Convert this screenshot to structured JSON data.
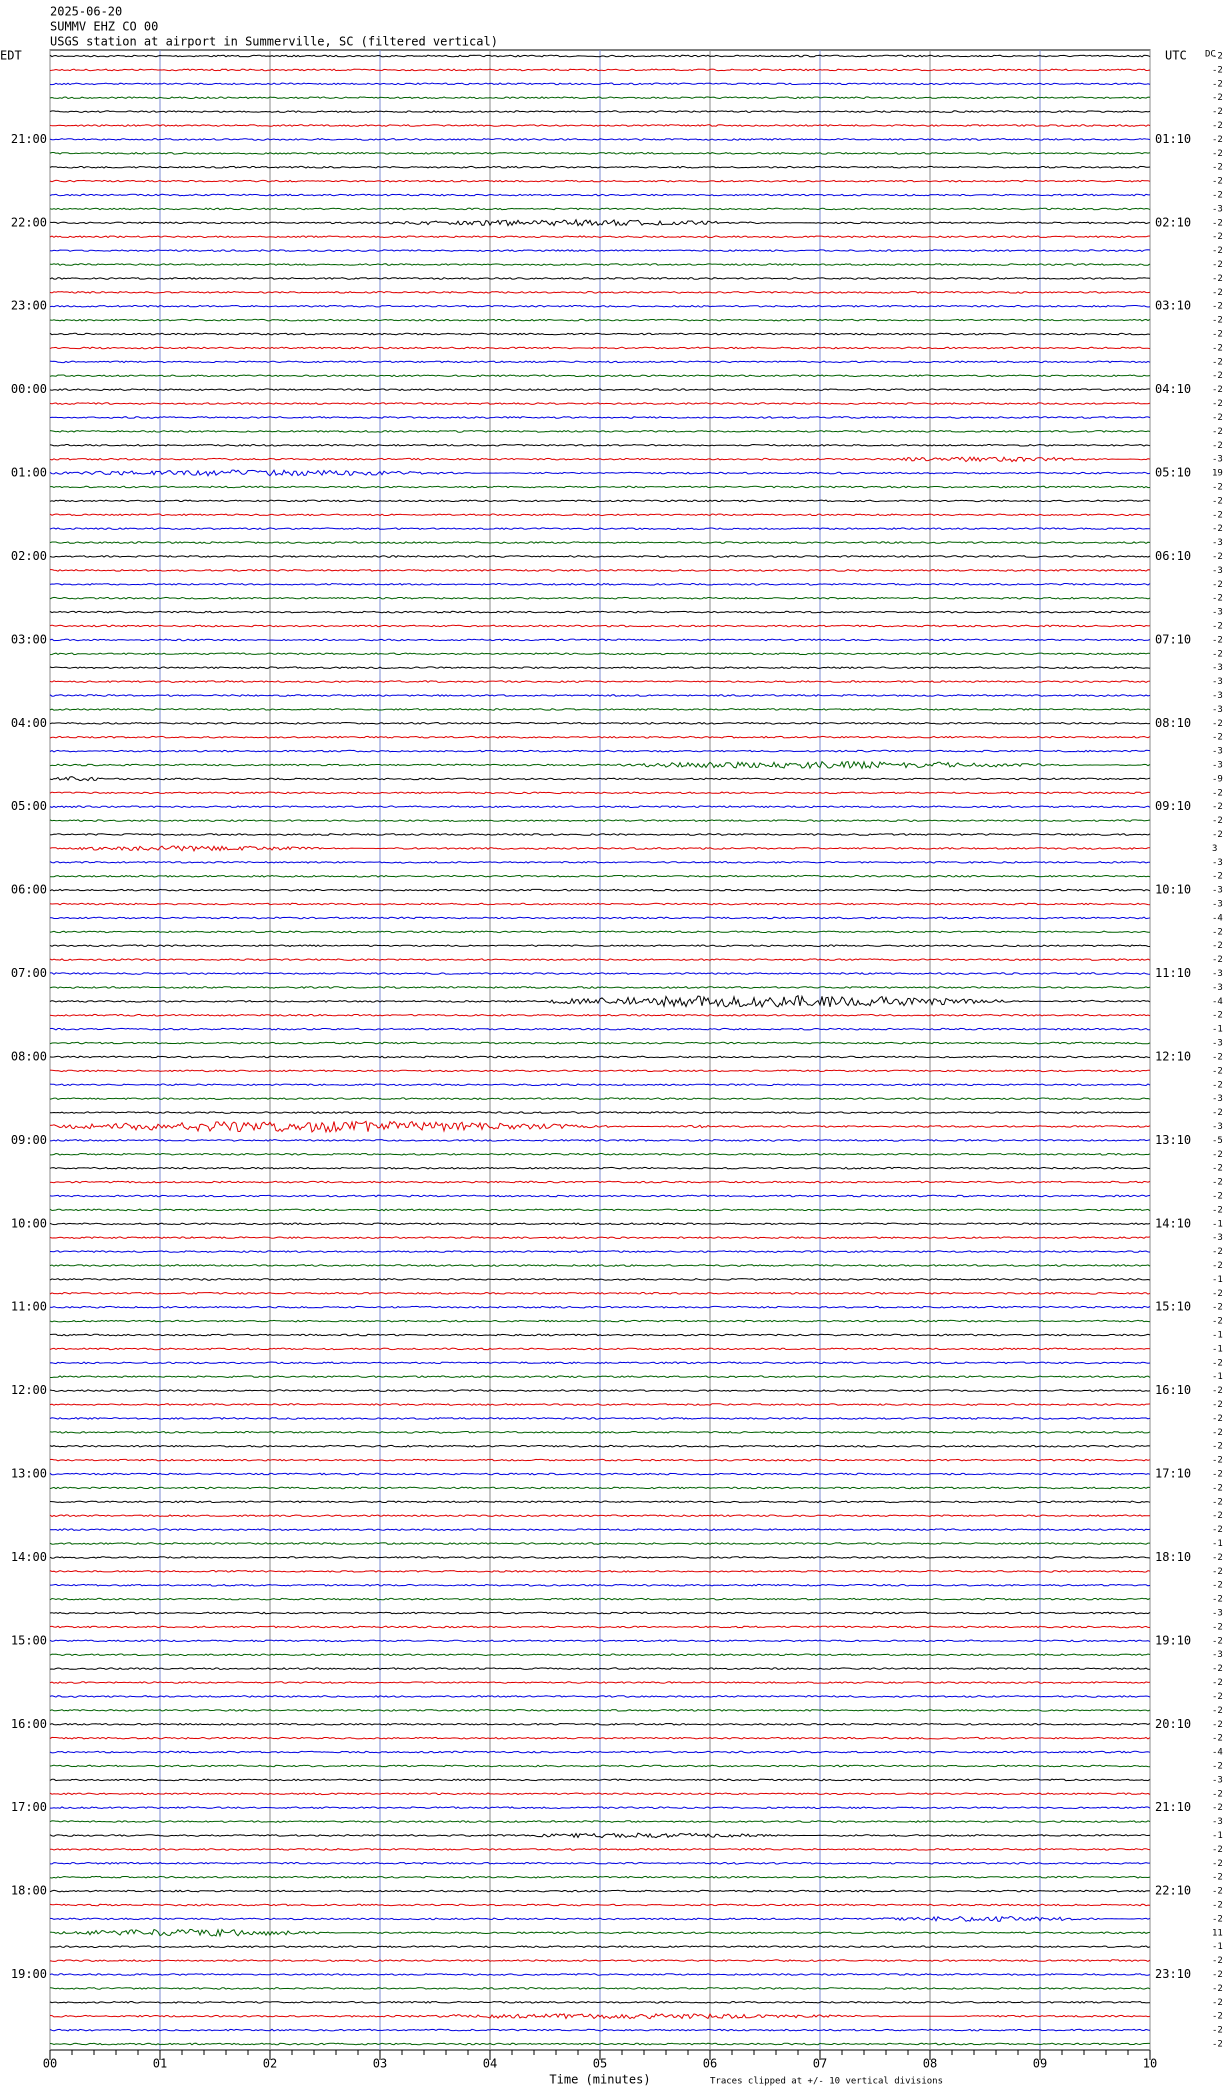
{
  "header": {
    "date": "2025-06-20",
    "station": "SUMMV EHZ CO 00",
    "description": "USGS station at airport in Summerville, SC (filtered vertical)"
  },
  "left_zone": "EDT",
  "right_zone": "UTC",
  "dc_label": "DC",
  "left_times": [
    "21:00",
    "22:00",
    "23:00",
    "00:00",
    "01:00",
    "02:00",
    "03:00",
    "04:00",
    "05:00",
    "06:00",
    "07:00",
    "08:00",
    "09:00",
    "10:00",
    "11:00",
    "12:00",
    "13:00",
    "14:00",
    "15:00",
    "16:00",
    "17:00",
    "18:00",
    "19:00"
  ],
  "right_times": [
    "01:10",
    "02:10",
    "03:10",
    "04:10",
    "05:10",
    "06:10",
    "07:10",
    "08:10",
    "09:10",
    "10:10",
    "11:10",
    "12:10",
    "13:10",
    "14:10",
    "15:10",
    "16:10",
    "17:10",
    "18:10",
    "19:10",
    "20:10",
    "21:10",
    "22:10",
    "23:10"
  ],
  "x_ticks": [
    "00",
    "01",
    "02",
    "03",
    "04",
    "05",
    "06",
    "07",
    "08",
    "09",
    "10"
  ],
  "x_axis_title": "Time (minutes)",
  "footnote": "Traces clipped at +/- 10 vertical divisions",
  "trace_offsets": [
    "-2",
    "-2",
    "-2",
    "-2",
    "-2",
    "-2",
    "-2",
    "-2",
    "-2",
    "-2",
    "-2",
    "-3",
    "-2",
    "-2",
    "-2",
    "-2",
    "-2",
    "-2",
    "-2",
    "-2",
    "-2",
    "-2",
    "-2",
    "-2",
    "-2",
    "-2",
    "-2",
    "-2",
    "-2",
    "-3",
    "19",
    "-2",
    "-2",
    "-2",
    "-2",
    "-3",
    "-2",
    "-3",
    "-2",
    "-2",
    "-3",
    "-2",
    "-2",
    "-2",
    "-3",
    "-3",
    "-3",
    "-3",
    "-2",
    "-2",
    "-3",
    "-3",
    "-9",
    "-2",
    "-2",
    "-2",
    "-2",
    "3",
    "-3",
    "-2",
    "-3",
    "-3",
    "-4",
    "-2",
    "-2",
    "-2",
    "-3",
    "-3",
    "-4",
    "-2",
    "-1",
    "-3",
    "-2",
    "-2",
    "-2",
    "-3",
    "-2",
    "-3",
    "-5",
    "-2",
    "-2",
    "-2",
    "-2",
    "-2",
    "-1",
    "-3",
    "-2",
    "-2",
    "-1",
    "-2",
    "-2",
    "-2",
    "-1",
    "-1",
    "-2",
    "-1",
    "-2",
    "-2",
    "-2",
    "-2",
    "-2",
    "-2",
    "-2",
    "-2",
    "-2",
    "-2",
    "-2",
    "-1",
    "-2",
    "-2",
    "-2",
    "-2",
    "-3",
    "-2",
    "-2",
    "-3",
    "-2",
    "-2",
    "-2",
    "-2",
    "-2",
    "-2",
    "-4",
    "-2",
    "-3",
    "-2",
    "-2",
    "-3",
    "-1",
    "-2",
    "-2",
    "-2",
    "-2",
    "-2",
    "-2",
    "11",
    "-1",
    "-2",
    "-2",
    "-2",
    "-2",
    "-2",
    "-2",
    "-2"
  ]
}
